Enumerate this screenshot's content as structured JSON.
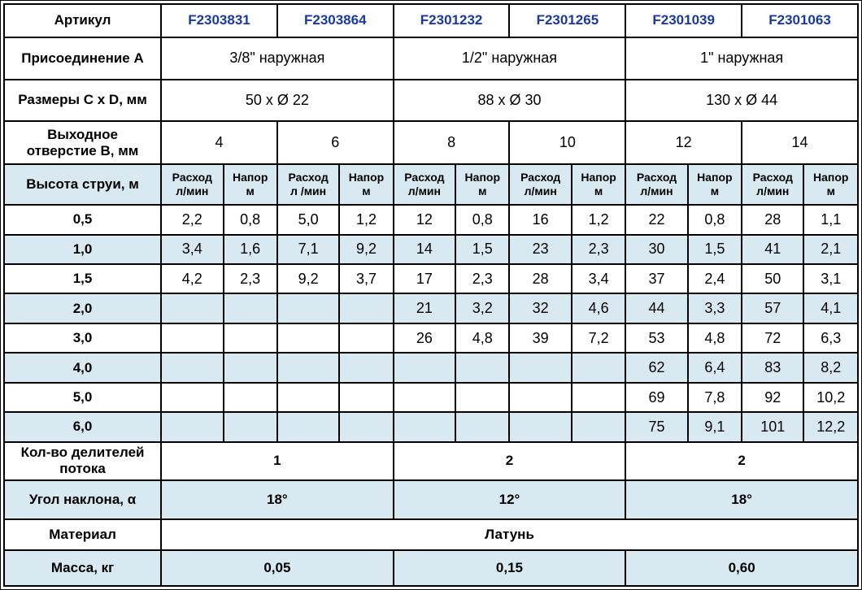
{
  "colors": {
    "article_text": "#1a3a9b",
    "alt_row_bg": "#d9e9f2",
    "border": "#000000",
    "background": "#ffffff"
  },
  "table": {
    "article": {
      "label": "Артикул",
      "values": [
        "F2303831",
        "F2303864",
        "F2301232",
        "F2301265",
        "F2301039",
        "F2301063"
      ]
    },
    "connection": {
      "label": "Присоединение А",
      "values": [
        "3/8\" наружная",
        "1/2\" наружная",
        "1\" наружная"
      ]
    },
    "dimensions": {
      "label": "Размеры C x D, мм",
      "values": [
        "50 x Ø 22",
        "88 x Ø 30",
        "130 x Ø 44"
      ]
    },
    "outlet": {
      "label": "Выходное\nотверстие B, мм",
      "values": [
        "4",
        "6",
        "8",
        "10",
        "12",
        "14"
      ]
    },
    "jet": {
      "label": "Высота струи, м",
      "flow_headers": [
        "Расход\nл/мин",
        "Расход\nл /мин",
        "Расход\nл/мин",
        "Расход\nл/мин",
        "Расход\nл/мин",
        "Расход\nл/мин"
      ],
      "pressure_headers": [
        "Напор\nм",
        "Напор\nм",
        "Напор\nм",
        "Напор\nм",
        "Напор\nм",
        "Напор\nм"
      ],
      "rows": [
        {
          "h": "0,5",
          "v": [
            "2,2",
            "0,8",
            "5,0",
            "1,2",
            "12",
            "0,8",
            "16",
            "1,2",
            "22",
            "0,8",
            "28",
            "1,1"
          ]
        },
        {
          "h": "1,0",
          "v": [
            "3,4",
            "1,6",
            "7,1",
            "9,2",
            "14",
            "1,5",
            "23",
            "2,3",
            "30",
            "1,5",
            "41",
            "2,1"
          ]
        },
        {
          "h": "1,5",
          "v": [
            "4,2",
            "2,3",
            "9,2",
            "3,7",
            "17",
            "2,3",
            "28",
            "3,4",
            "37",
            "2,4",
            "50",
            "3,1"
          ]
        },
        {
          "h": "2,0",
          "v": [
            "",
            "",
            "",
            "",
            "21",
            "3,2",
            "32",
            "4,6",
            "44",
            "3,3",
            "57",
            "4,1"
          ]
        },
        {
          "h": "3,0",
          "v": [
            "",
            "",
            "",
            "",
            "26",
            "4,8",
            "39",
            "7,2",
            "53",
            "4,8",
            "72",
            "6,3"
          ]
        },
        {
          "h": "4,0",
          "v": [
            "",
            "",
            "",
            "",
            "",
            "",
            "",
            "",
            "62",
            "6,4",
            "83",
            "8,2"
          ]
        },
        {
          "h": "5,0",
          "v": [
            "",
            "",
            "",
            "",
            "",
            "",
            "",
            "",
            "69",
            "7,8",
            "92",
            "10,2"
          ]
        },
        {
          "h": "6,0",
          "v": [
            "",
            "",
            "",
            "",
            "",
            "",
            "",
            "",
            "75",
            "9,1",
            "101",
            "12,2"
          ]
        }
      ]
    },
    "dividers": {
      "label": "Кол-во делителей\nпотока",
      "values": [
        "1",
        "2",
        "2"
      ]
    },
    "angle": {
      "label": "Угол наклона, α",
      "values": [
        "18°",
        "12°",
        "18°"
      ]
    },
    "material": {
      "label": "Материал",
      "value": "Латунь"
    },
    "mass": {
      "label": "Масса, кг",
      "values": [
        "0,05",
        "0,15",
        "0,60"
      ]
    }
  }
}
